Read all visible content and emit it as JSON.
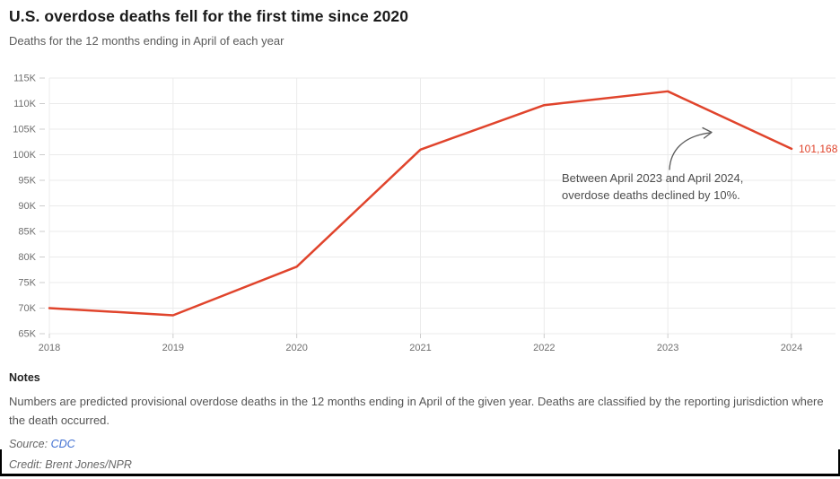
{
  "header": {
    "title": "U.S. overdose deaths fell for the first time since 2020",
    "subtitle": "Deaths for the 12 months ending in April of each year"
  },
  "chart_data": {
    "type": "line",
    "title": "U.S. overdose deaths fell for the first time since 2020",
    "subtitle": "Deaths for the 12 months ending in April of each year",
    "categories": [
      "2018",
      "2019",
      "2020",
      "2021",
      "2022",
      "2023",
      "2024"
    ],
    "series": [
      {
        "name": "Predicted provisional overdose deaths",
        "values": [
          70000,
          68600,
          78100,
          101000,
          109700,
          112400,
          101168
        ]
      }
    ],
    "xlabel": "",
    "ylabel": "",
    "ylim": [
      65000,
      115000
    ],
    "ytick_step": 5000,
    "ytick_labels": [
      "65K",
      "70K",
      "75K",
      "80K",
      "85K",
      "90K",
      "95K",
      "100K",
      "105K",
      "110K",
      "115K"
    ],
    "grid": true,
    "legend_position": "none",
    "line_color": "#e0442c",
    "end_label": "101,168",
    "annotation": {
      "text": "Between April 2023 and April 2024, overdose deaths declined by 10%."
    }
  },
  "notes": {
    "heading": "Notes",
    "body": "Numbers are predicted provisional overdose deaths in the 12 months ending in April of the given year. Deaths are classified by the reporting jurisdiction where the death occurred.",
    "source_label": "Source: ",
    "source_link": "CDC",
    "credit": "Credit: Brent Jones/NPR"
  }
}
